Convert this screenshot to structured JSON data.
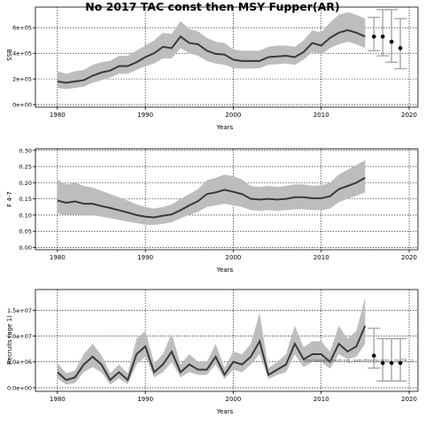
{
  "title": "No 2017 TAC const then MSY Fupper(AR)",
  "colors": {
    "line": "#3a3a3a",
    "band": "#bdbdbd",
    "grid": "#000000",
    "point": "#000000",
    "errorbar": "#a6a6a6"
  },
  "chart_data": [
    {
      "type": "line",
      "panel": "ssb",
      "ylabel": "SSB",
      "xlabel": "Years",
      "xlim": [
        1977.5,
        2021
      ],
      "ylim": [
        -20000,
        760000
      ],
      "xticks": [
        1980,
        1990,
        2000,
        2010,
        2020
      ],
      "yticks": [
        0,
        200000,
        400000,
        600000
      ],
      "ytick_labels": [
        "0e+00",
        "2e+05",
        "4e+05",
        "6e+05"
      ],
      "grid": true,
      "x": [
        1980,
        1981,
        1982,
        1983,
        1984,
        1985,
        1986,
        1987,
        1988,
        1989,
        1990,
        1991,
        1992,
        1993,
        1994,
        1995,
        1996,
        1997,
        1998,
        1999,
        2000,
        2001,
        2002,
        2003,
        2004,
        2005,
        2006,
        2007,
        2008,
        2009,
        2010,
        2011,
        2012,
        2013,
        2014,
        2015
      ],
      "median": [
        180000,
        170000,
        180000,
        190000,
        225000,
        250000,
        265000,
        300000,
        300000,
        330000,
        370000,
        400000,
        450000,
        440000,
        530000,
        480000,
        470000,
        420000,
        395000,
        390000,
        350000,
        340000,
        340000,
        340000,
        370000,
        375000,
        380000,
        370000,
        410000,
        480000,
        460000,
        520000,
        560000,
        580000,
        560000,
        530000
      ],
      "lower": [
        130000,
        120000,
        130000,
        140000,
        170000,
        190000,
        210000,
        240000,
        240000,
        270000,
        300000,
        320000,
        360000,
        360000,
        440000,
        400000,
        380000,
        340000,
        320000,
        310000,
        285000,
        280000,
        280000,
        285000,
        310000,
        315000,
        320000,
        310000,
        350000,
        410000,
        390000,
        440000,
        470000,
        490000,
        470000,
        440000
      ],
      "upper": [
        260000,
        240000,
        260000,
        270000,
        310000,
        330000,
        340000,
        380000,
        380000,
        420000,
        460000,
        500000,
        560000,
        550000,
        650000,
        590000,
        570000,
        520000,
        490000,
        480000,
        430000,
        420000,
        420000,
        420000,
        450000,
        460000,
        460000,
        450000,
        500000,
        580000,
        560000,
        640000,
        700000,
        720000,
        700000,
        670000
      ],
      "proj_x": [
        2016,
        2017,
        2018,
        2019
      ],
      "proj_median": [
        530000,
        530000,
        490000,
        440000
      ],
      "proj_lower": [
        420000,
        380000,
        330000,
        280000
      ],
      "proj_upper": [
        680000,
        740000,
        740000,
        670000
      ]
    },
    {
      "type": "line",
      "panel": "f",
      "ylabel": "F 4-7",
      "xlabel": "Years",
      "xlim": [
        1977.5,
        2021
      ],
      "ylim": [
        -0.007,
        0.305
      ],
      "xticks": [
        1980,
        1990,
        2000,
        2010,
        2020
      ],
      "yticks": [
        0,
        0.05,
        0.1,
        0.15,
        0.2,
        0.25,
        0.3
      ],
      "ytick_labels": [
        "0.00",
        "0.05",
        "0.10",
        "0.15",
        "0.20",
        "0.25",
        "0.30"
      ],
      "grid": true,
      "x": [
        1980,
        1981,
        1982,
        1983,
        1984,
        1985,
        1986,
        1987,
        1988,
        1989,
        1990,
        1991,
        1992,
        1993,
        1994,
        1995,
        1996,
        1997,
        1998,
        1999,
        2000,
        2001,
        2002,
        2003,
        2004,
        2005,
        2006,
        2007,
        2008,
        2009,
        2010,
        2011,
        2012,
        2013,
        2014,
        2015
      ],
      "median": [
        0.145,
        0.138,
        0.142,
        0.135,
        0.135,
        0.128,
        0.122,
        0.115,
        0.108,
        0.1,
        0.095,
        0.093,
        0.098,
        0.102,
        0.115,
        0.13,
        0.143,
        0.165,
        0.17,
        0.178,
        0.172,
        0.165,
        0.15,
        0.148,
        0.15,
        0.148,
        0.15,
        0.155,
        0.155,
        0.152,
        0.152,
        0.158,
        0.18,
        0.19,
        0.2,
        0.215
      ],
      "lower": [
        0.105,
        0.1,
        0.102,
        0.1,
        0.1,
        0.095,
        0.09,
        0.085,
        0.08,
        0.075,
        0.07,
        0.07,
        0.073,
        0.078,
        0.09,
        0.1,
        0.11,
        0.125,
        0.13,
        0.135,
        0.13,
        0.125,
        0.115,
        0.113,
        0.115,
        0.113,
        0.115,
        0.118,
        0.118,
        0.115,
        0.115,
        0.12,
        0.14,
        0.15,
        0.16,
        0.17
      ],
      "upper": [
        0.21,
        0.195,
        0.2,
        0.19,
        0.185,
        0.175,
        0.165,
        0.155,
        0.145,
        0.133,
        0.125,
        0.12,
        0.125,
        0.133,
        0.15,
        0.165,
        0.18,
        0.208,
        0.215,
        0.225,
        0.22,
        0.21,
        0.19,
        0.187,
        0.19,
        0.187,
        0.19,
        0.195,
        0.195,
        0.19,
        0.192,
        0.2,
        0.225,
        0.24,
        0.255,
        0.27
      ]
    },
    {
      "type": "line",
      "panel": "recruits",
      "ylabel": "Recruits (age 1)",
      "xlabel": "Years",
      "xlim": [
        1977.5,
        2021
      ],
      "ylim": [
        -700000,
        19000000
      ],
      "xticks": [
        1980,
        1990,
        2000,
        2010,
        2020
      ],
      "yticks": [
        0,
        5000000,
        10000000,
        15000000
      ],
      "ytick_labels": [
        "0.0e+00",
        "5.0e+06",
        "1.0e+07",
        "1.5e+07"
      ],
      "grid": true,
      "annotation": "stockassessment.org, sam-fmsdjs-proj... (ns74...)",
      "x": [
        1980,
        1981,
        1982,
        1983,
        1984,
        1985,
        1986,
        1987,
        1988,
        1989,
        1990,
        1991,
        1992,
        1993,
        1994,
        1995,
        1996,
        1997,
        1998,
        1999,
        2000,
        2001,
        2002,
        2003,
        2004,
        2005,
        2006,
        2007,
        2008,
        2009,
        2010,
        2011,
        2012,
        2013,
        2014,
        2015
      ],
      "median": [
        3000000,
        1500000,
        2000000,
        4500000,
        6000000,
        4500000,
        1500000,
        3000000,
        1500000,
        6500000,
        8000000,
        3000000,
        4500000,
        7000000,
        3000000,
        4500000,
        3500000,
        3500000,
        6000000,
        2500000,
        5000000,
        4500000,
        6000000,
        9000000,
        2500000,
        3500000,
        4500000,
        8500000,
        5500000,
        6500000,
        6500000,
        5000000,
        8500000,
        7000000,
        8000000,
        12000000
      ],
      "lower": [
        1800000,
        600000,
        900000,
        3000000,
        4000000,
        3000000,
        600000,
        1800000,
        700000,
        4500000,
        6000000,
        2000000,
        3000000,
        5000000,
        2000000,
        3000000,
        2500000,
        2500000,
        4500000,
        1700000,
        3500000,
        3000000,
        4500000,
        6500000,
        1700000,
        2500000,
        3000000,
        6500000,
        4000000,
        5000000,
        5000000,
        3700000,
        6500000,
        5500000,
        6000000,
        8500000
      ],
      "upper": [
        4800000,
        2800000,
        3300000,
        6500000,
        8500000,
        6300000,
        2800000,
        4500000,
        2800000,
        9500000,
        11000000,
        4800000,
        6500000,
        10500000,
        4500000,
        6500000,
        5000000,
        5000000,
        8500000,
        3800000,
        7000000,
        6500000,
        8500000,
        14500000,
        3800000,
        5000000,
        6500000,
        12000000,
        7800000,
        9000000,
        9000000,
        7000000,
        12000000,
        9500000,
        11000000,
        17500000
      ],
      "proj_x": [
        2016,
        2017,
        2018,
        2019
      ],
      "proj_median": [
        6200000,
        4800000,
        4800000,
        4800000
      ],
      "proj_lower": [
        3800000,
        1300000,
        1300000,
        1300000
      ],
      "proj_upper": [
        11500000,
        9500000,
        9500000,
        9500000
      ]
    }
  ]
}
